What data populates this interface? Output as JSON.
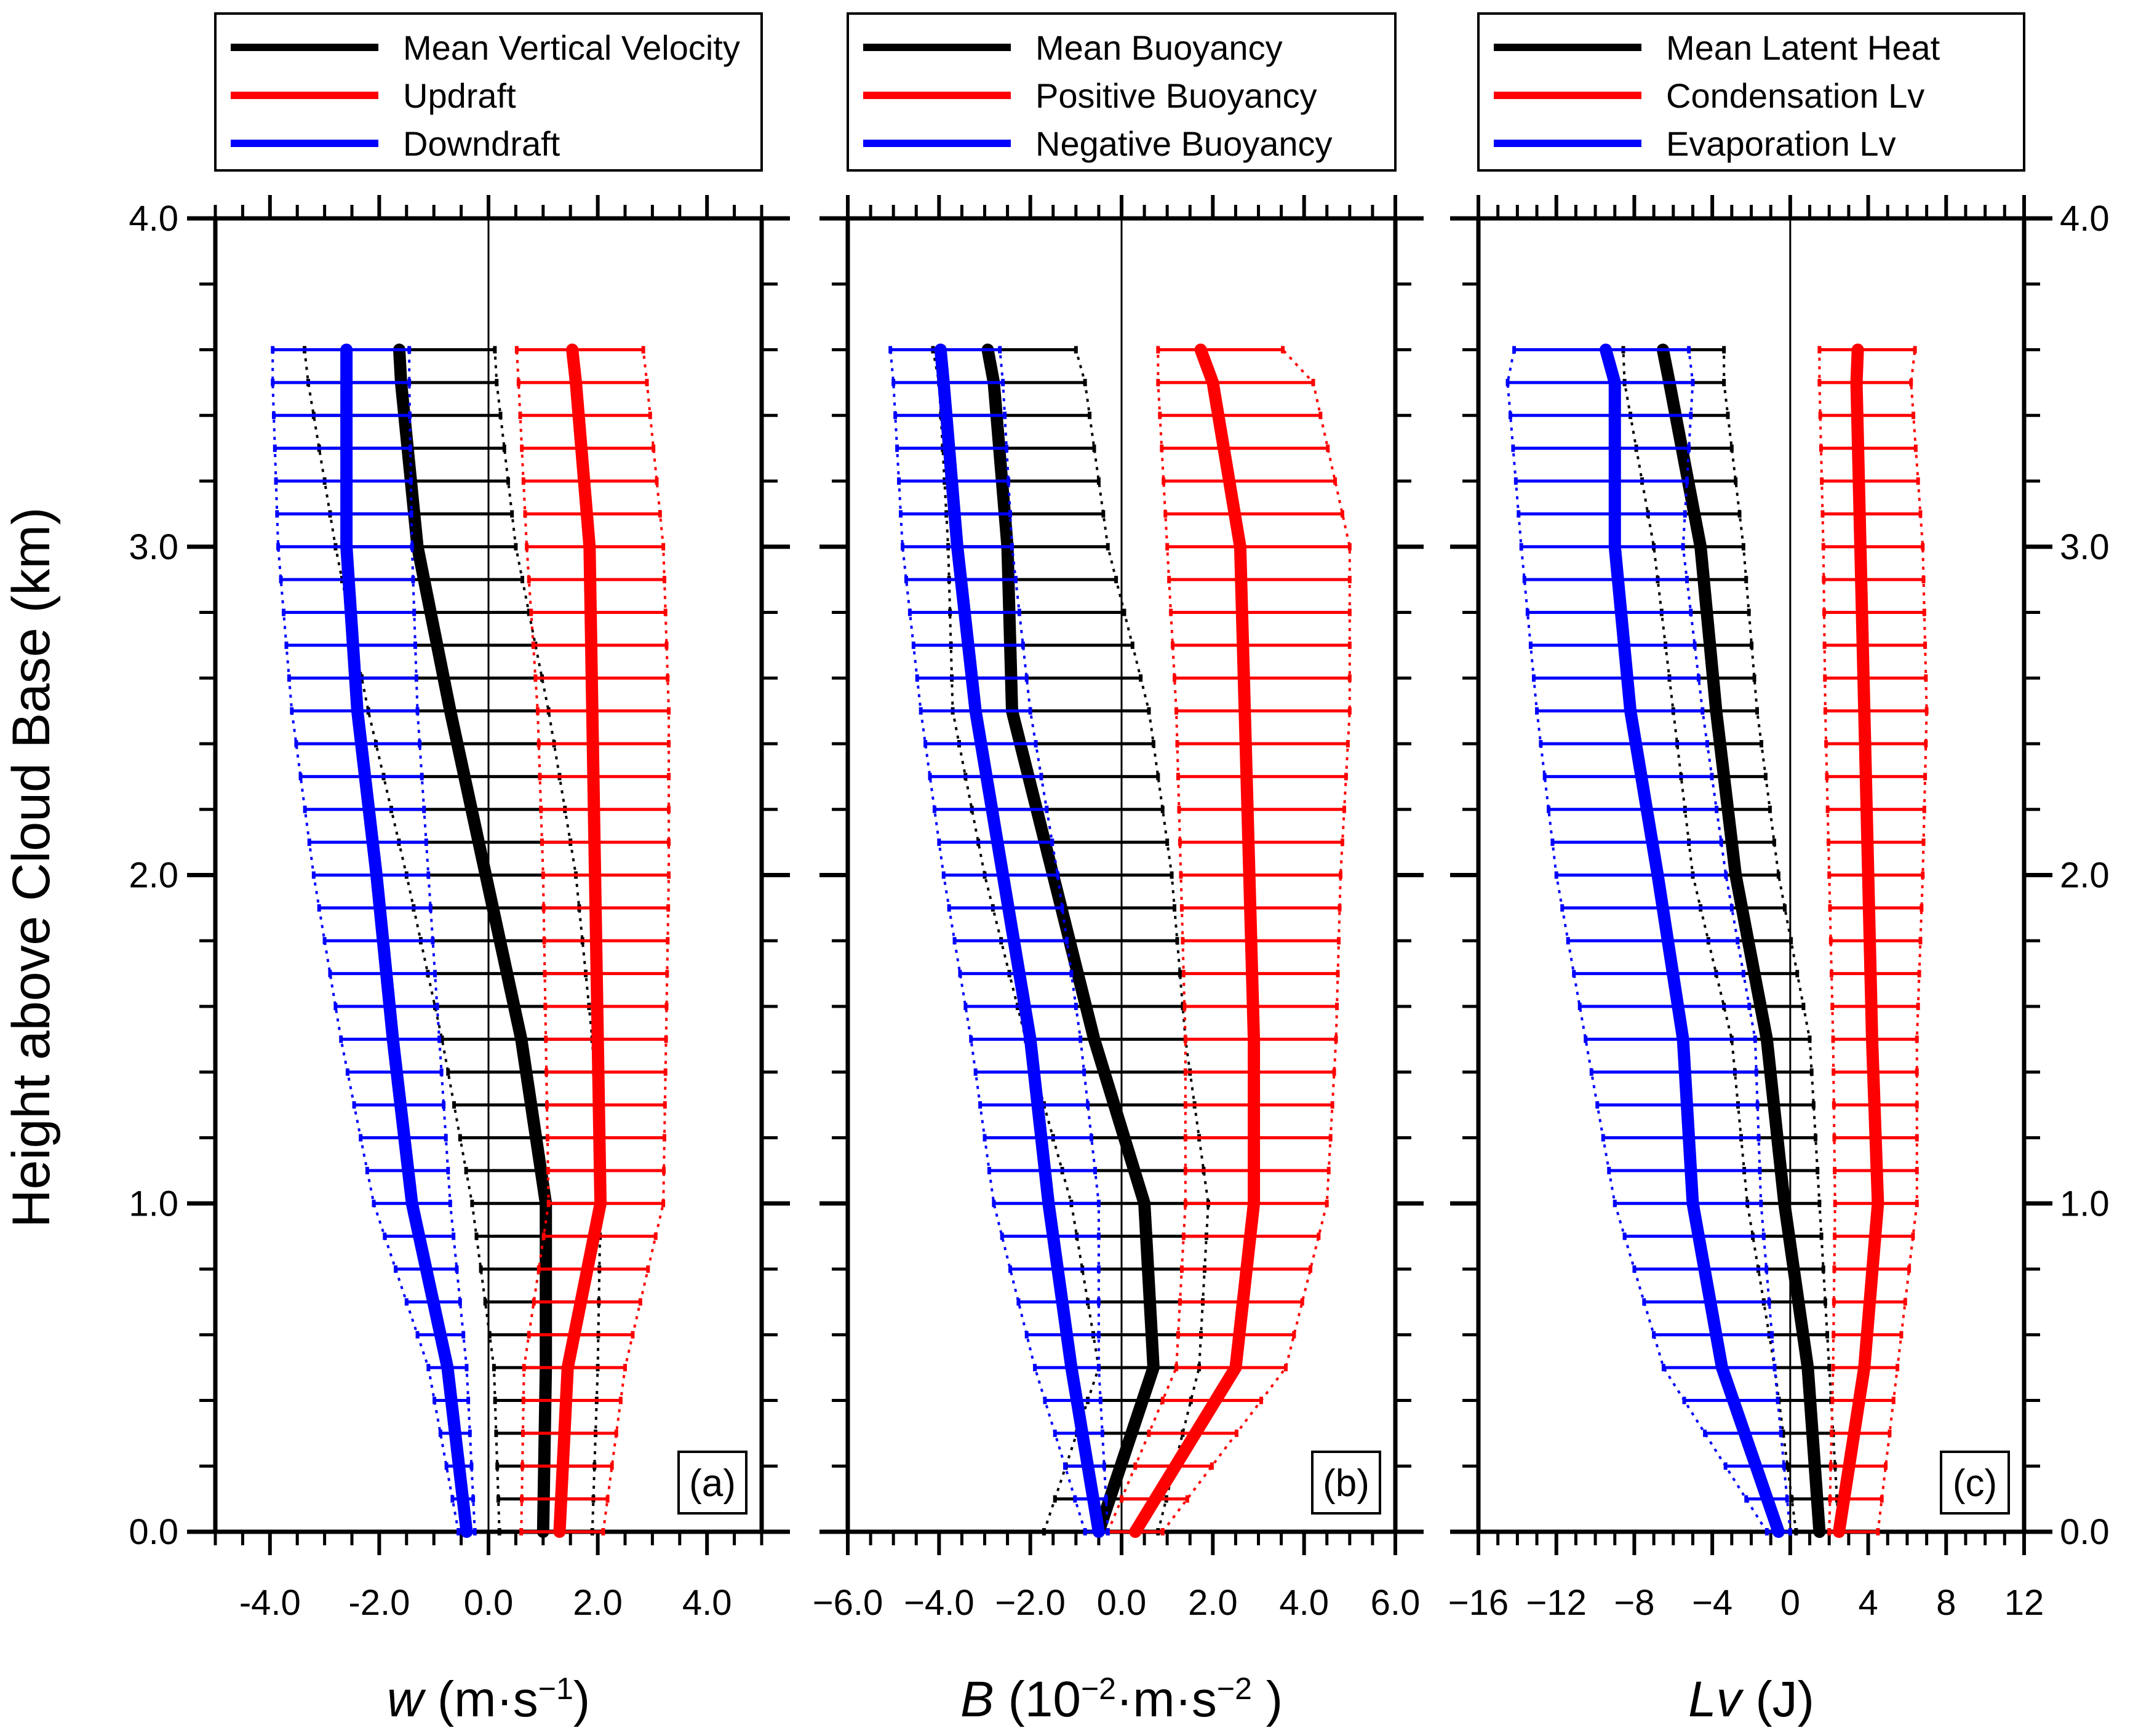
{
  "figure": {
    "ylabel": "Height above Cloud Base (km)"
  },
  "chart_data": [
    {
      "type": "line",
      "panel_label": "(a)",
      "x_symbol": "w",
      "x_unit_prefix": " (m·s",
      "x_unit_sup": "−1",
      "x_unit_suffix": ")",
      "xlim": [
        -5,
        5
      ],
      "xticks": [
        -4,
        -2,
        0,
        2,
        4
      ],
      "xtick_labels": [
        "-4.0",
        "-2.0",
        "0.0",
        "2.0",
        "4.0"
      ],
      "xminor_step": 0.5,
      "ylim": [
        0,
        4
      ],
      "yticks": [
        0,
        1,
        2,
        3,
        4
      ],
      "ytick_labels": [
        "0.0",
        "1.0",
        "2.0",
        "3.0",
        "4.0"
      ],
      "legend": [
        {
          "label": "Mean Vertical Velocity",
          "color": "#000000"
        },
        {
          "label": "Updraft",
          "color": "#ff0000"
        },
        {
          "label": "Downdraft",
          "color": "#0000ff"
        }
      ],
      "series": [
        {
          "name": "Mean Vertical Velocity",
          "color": "#000000",
          "y": [
            0.0,
            0.5,
            1.0,
            1.5,
            2.0,
            2.5,
            3.0,
            3.5,
            3.65
          ],
          "x": [
            1.0,
            1.05,
            1.05,
            0.6,
            -0.05,
            -0.7,
            -1.3,
            -1.6,
            -1.65
          ],
          "lo": [
            0.2,
            0.1,
            -0.3,
            -0.85,
            -1.5,
            -2.2,
            -2.8,
            -3.3,
            -3.4
          ],
          "hi": [
            1.9,
            2.0,
            2.05,
            1.9,
            1.6,
            1.1,
            0.5,
            0.15,
            0.1
          ]
        },
        {
          "name": "Updraft",
          "color": "#ff0000",
          "y": [
            0.0,
            0.5,
            1.0,
            1.5,
            2.0,
            2.5,
            3.0,
            3.5,
            3.65
          ],
          "x": [
            1.3,
            1.45,
            2.05,
            2.0,
            1.95,
            1.9,
            1.85,
            1.6,
            1.5
          ],
          "lo": [
            0.6,
            0.65,
            1.1,
            1.05,
            1.0,
            0.9,
            0.7,
            0.55,
            0.5
          ],
          "hi": [
            2.1,
            2.5,
            3.2,
            3.25,
            3.3,
            3.3,
            3.2,
            2.9,
            2.8
          ]
        },
        {
          "name": "Downdraft",
          "color": "#0000ff",
          "y": [
            0.0,
            0.5,
            1.0,
            1.5,
            2.0,
            2.5,
            3.0,
            3.5,
            3.65
          ],
          "x": [
            -0.4,
            -0.75,
            -1.4,
            -1.75,
            -2.05,
            -2.4,
            -2.6,
            -2.6,
            -2.6
          ],
          "lo": [
            -0.55,
            -1.1,
            -2.1,
            -2.7,
            -3.2,
            -3.6,
            -3.85,
            -3.95,
            -3.95
          ],
          "hi": [
            -0.25,
            -0.4,
            -0.7,
            -0.9,
            -1.1,
            -1.3,
            -1.4,
            -1.45,
            -1.45
          ]
        }
      ]
    },
    {
      "type": "line",
      "panel_label": "(b)",
      "x_symbol": "B",
      "x_unit_prefix": " (10",
      "x_unit_sup": "−2",
      "x_unit_middle": "·m·s",
      "x_unit_sup2": "−2",
      "x_unit_suffix": " )",
      "xlim": [
        -6,
        6
      ],
      "xticks": [
        -6,
        -4,
        -2,
        0,
        2,
        4,
        6
      ],
      "xtick_labels": [
        "−6.0",
        "−4.0",
        "−2.0",
        "0.0",
        "2.0",
        "4.0",
        "6.0"
      ],
      "xminor_step": 0.5,
      "ylim": [
        0,
        4
      ],
      "yticks": [
        0,
        1,
        2,
        3,
        4
      ],
      "ytick_labels": [
        "",
        "",
        "",
        "",
        ""
      ],
      "legend": [
        {
          "label": "Mean Buoyancy",
          "color": "#000000"
        },
        {
          "label": "Positive Buoyancy",
          "color": "#ff0000"
        },
        {
          "label": "Negative Buoyancy",
          "color": "#0000ff"
        }
      ],
      "series": [
        {
          "name": "Mean Buoyancy",
          "color": "#000000",
          "y": [
            0.0,
            0.5,
            1.0,
            1.5,
            2.0,
            2.5,
            3.0,
            3.5,
            3.65
          ],
          "x": [
            -0.5,
            0.7,
            0.5,
            -0.6,
            -1.5,
            -2.4,
            -2.5,
            -2.8,
            -3.0
          ],
          "lo": [
            -1.7,
            -0.5,
            -1.1,
            -2.1,
            -3.0,
            -3.7,
            -3.8,
            -4.0,
            -4.2
          ],
          "hi": [
            0.8,
            1.7,
            1.9,
            1.4,
            1.1,
            0.6,
            -0.3,
            -0.8,
            -1.1
          ]
        },
        {
          "name": "Positive Buoyancy",
          "color": "#ff0000",
          "y": [
            0.0,
            0.5,
            1.0,
            1.5,
            2.0,
            2.5,
            3.0,
            3.5,
            3.65
          ],
          "x": [
            0.3,
            2.5,
            2.9,
            2.9,
            2.8,
            2.7,
            2.6,
            2.0,
            1.6
          ],
          "lo": [
            -0.3,
            1.2,
            1.4,
            1.4,
            1.3,
            1.2,
            1.0,
            0.8,
            0.8
          ],
          "hi": [
            0.9,
            3.6,
            4.5,
            4.7,
            4.8,
            5.0,
            5.0,
            4.2,
            3.2
          ]
        },
        {
          "name": "Negative Buoyancy",
          "color": "#0000ff",
          "y": [
            0.0,
            0.5,
            1.0,
            1.5,
            2.0,
            2.5,
            3.0,
            3.5,
            3.65
          ],
          "x": [
            -0.5,
            -1.1,
            -1.6,
            -2.0,
            -2.6,
            -3.2,
            -3.6,
            -3.9,
            -4.0
          ],
          "lo": [
            -0.8,
            -1.9,
            -2.8,
            -3.3,
            -3.9,
            -4.4,
            -4.8,
            -5.0,
            -5.1
          ],
          "hi": [
            -0.3,
            -0.5,
            -0.5,
            -0.9,
            -1.4,
            -2.0,
            -2.4,
            -2.6,
            -2.7
          ]
        }
      ]
    },
    {
      "type": "line",
      "panel_label": "(c)",
      "x_symbol": "Lv",
      "x_unit_prefix": " (J)",
      "xlim": [
        -16,
        12
      ],
      "xticks": [
        -16,
        -12,
        -8,
        -4,
        0,
        4,
        8,
        12
      ],
      "xtick_labels": [
        "−16",
        "−12",
        "−8",
        "−4",
        "0",
        "4",
        "8",
        "12"
      ],
      "xminor_step": 1,
      "ylim": [
        0,
        4
      ],
      "yticks": [
        0,
        1,
        2,
        3,
        4
      ],
      "ytick_labels": [
        "0.0",
        "1.0",
        "2.0",
        "3.0",
        "4.0"
      ],
      "legend": [
        {
          "label": "Mean Latent Heat",
          "color": "#000000"
        },
        {
          "label": "Condensation Lv",
          "color": "#ff0000"
        },
        {
          "label": "Evaporation Lv",
          "color": "#0000ff"
        }
      ],
      "series": [
        {
          "name": "Mean Latent Heat",
          "color": "#000000",
          "y": [
            0.0,
            0.5,
            1.0,
            1.5,
            2.0,
            2.5,
            3.0,
            3.5,
            3.65
          ],
          "x": [
            1.5,
            0.9,
            -0.3,
            -1.2,
            -2.8,
            -3.8,
            -4.6,
            -6.2,
            -6.7
          ],
          "lo": [
            0.3,
            -0.8,
            -2.2,
            -3.0,
            -5.0,
            -6.0,
            -7.0,
            -8.5,
            -8.6
          ],
          "hi": [
            2.5,
            2.0,
            1.5,
            1.0,
            -0.6,
            -1.7,
            -2.4,
            -3.4,
            -3.4
          ]
        },
        {
          "name": "Condensation Lv",
          "color": "#ff0000",
          "y": [
            0.0,
            0.5,
            1.0,
            1.5,
            2.0,
            2.5,
            3.0,
            3.5,
            3.65
          ],
          "x": [
            2.5,
            3.8,
            4.5,
            4.2,
            4.0,
            3.8,
            3.6,
            3.4,
            3.5
          ],
          "lo": [
            2.0,
            2.2,
            2.3,
            2.2,
            2.0,
            1.8,
            1.7,
            1.5,
            1.5
          ],
          "hi": [
            4.5,
            5.5,
            6.5,
            6.5,
            6.8,
            7.0,
            6.8,
            6.2,
            6.5
          ]
        },
        {
          "name": "Evaporation Lv",
          "color": "#0000ff",
          "y": [
            0.0,
            0.5,
            1.0,
            1.5,
            2.0,
            2.5,
            3.0,
            3.5,
            3.65
          ],
          "x": [
            -0.6,
            -3.5,
            -5.0,
            -5.5,
            -6.8,
            -8.2,
            -9.0,
            -9.0,
            -9.7
          ],
          "lo": [
            -1.2,
            -6.5,
            -9.0,
            -10.5,
            -12.0,
            -13.0,
            -13.8,
            -14.5,
            -14.0
          ],
          "hi": [
            0.0,
            -0.8,
            -1.5,
            -1.8,
            -3.3,
            -4.5,
            -5.5,
            -5.0,
            -5.3
          ]
        }
      ]
    }
  ]
}
